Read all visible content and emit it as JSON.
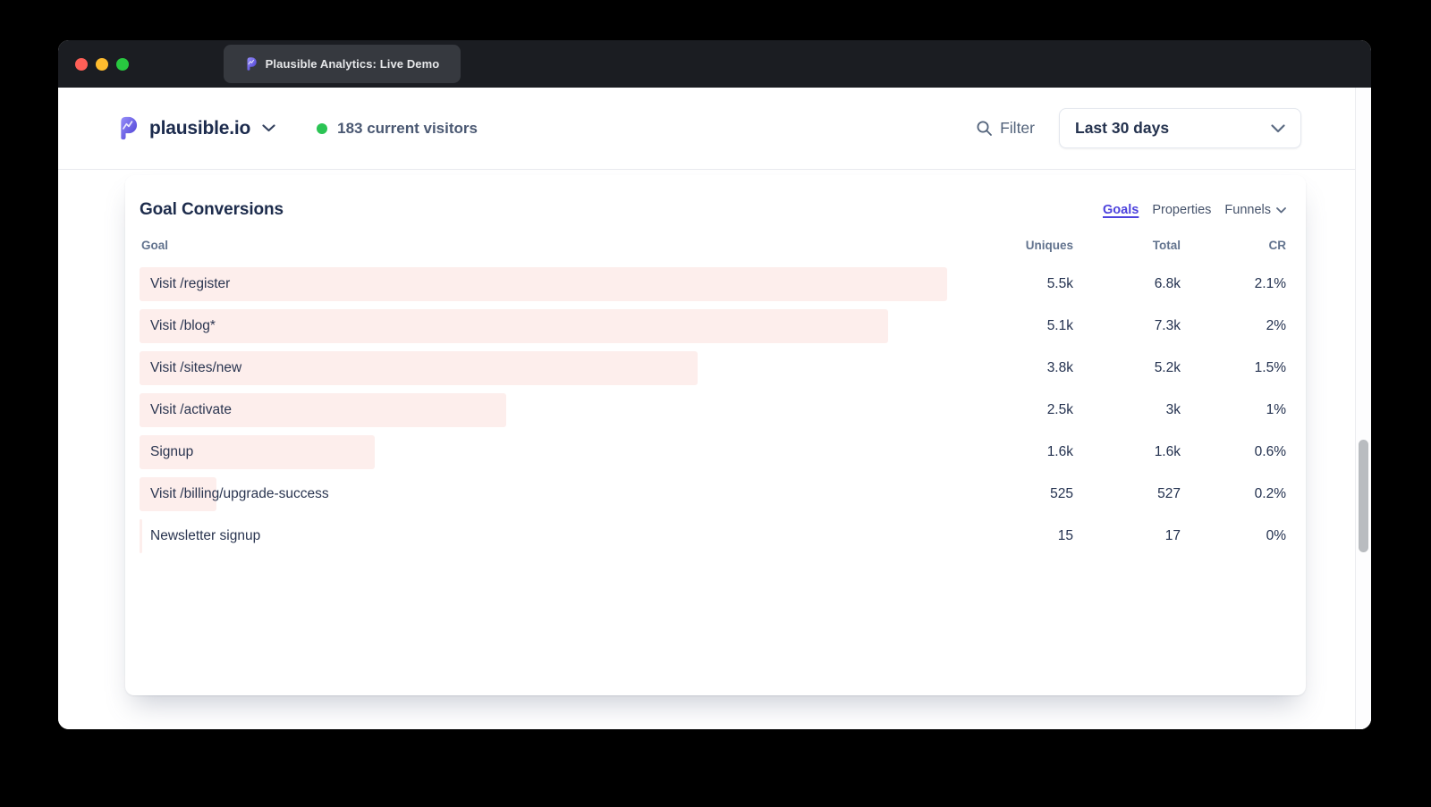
{
  "theme": {
    "accent": "#4d43dd",
    "barfill": "#fdeeec",
    "textdark": "#22304e",
    "muted": "#62738e",
    "greendot": "#2bc454",
    "titlebar": "#1b1d22",
    "tabbg": "#36393f"
  },
  "titlebar": {
    "tab_title": "Plausible Analytics: Live Demo"
  },
  "nav": {
    "site_name": "plausible.io",
    "visitors": "183 current visitors",
    "filter_label": "Filter",
    "date_range": "Last 30 days"
  },
  "card": {
    "title": "Goal Conversions",
    "tabs": {
      "goals": "Goals",
      "properties": "Properties",
      "funnels": "Funnels"
    },
    "columns": {
      "goal": "Goal",
      "uniques": "Uniques",
      "total": "Total",
      "cr": "CR"
    },
    "rows": [
      {
        "label": "Visit /register",
        "uniques": "5.5k",
        "total": "6.8k",
        "cr": "2.1%",
        "uniques_num": 5500
      },
      {
        "label": "Visit /blog*",
        "uniques": "5.1k",
        "total": "7.3k",
        "cr": "2%",
        "uniques_num": 5100
      },
      {
        "label": "Visit /sites/new",
        "uniques": "3.8k",
        "total": "5.2k",
        "cr": "1.5%",
        "uniques_num": 3800
      },
      {
        "label": "Visit /activate",
        "uniques": "2.5k",
        "total": "3k",
        "cr": "1%",
        "uniques_num": 2500
      },
      {
        "label": "Signup",
        "uniques": "1.6k",
        "total": "1.6k",
        "cr": "0.6%",
        "uniques_num": 1600
      },
      {
        "label": "Visit /billing/upgrade-success",
        "uniques": "525",
        "total": "527",
        "cr": "0.2%",
        "uniques_num": 525
      },
      {
        "label": "Newsletter signup",
        "uniques": "15",
        "total": "17",
        "cr": "0%",
        "uniques_num": 15
      }
    ]
  },
  "chart_data": {
    "type": "bar",
    "orientation": "horizontal",
    "title": "Goal Conversions",
    "categories": [
      "Visit /register",
      "Visit /blog*",
      "Visit /sites/new",
      "Visit /activate",
      "Signup",
      "Visit /billing/upgrade-success",
      "Newsletter signup"
    ],
    "series": [
      {
        "name": "Uniques",
        "values": [
          5500,
          5100,
          3800,
          2500,
          1600,
          525,
          15
        ]
      },
      {
        "name": "Total",
        "values": [
          6800,
          7300,
          5200,
          3000,
          1600,
          527,
          17
        ]
      },
      {
        "name": "CR %",
        "values": [
          2.1,
          2,
          1.5,
          1,
          0.6,
          0.2,
          0
        ]
      }
    ],
    "xlim": [
      0,
      5500
    ],
    "bar_color": "#fdeeec",
    "legend_position": "none",
    "grid": false
  }
}
